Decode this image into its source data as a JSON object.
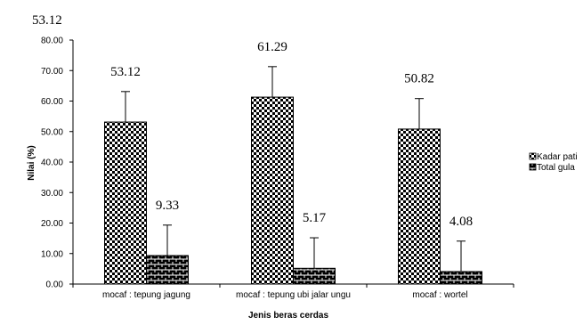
{
  "chart_data": {
    "type": "bar",
    "title": "53.12",
    "xlabel": "Jenis beras cerdas",
    "ylabel": "Nilai (%)",
    "ylim": [
      0,
      80
    ],
    "yticks": [
      "0.00",
      "10.00",
      "20.00",
      "30.00",
      "40.00",
      "50.00",
      "60.00",
      "70.00",
      "80.00"
    ],
    "categories": [
      "mocaf : tepung jagung",
      "mocaf : tepung ubi jalar ungu",
      "mocaf : wortel"
    ],
    "series": [
      {
        "name": "Kadar pati",
        "values": [
          53.12,
          61.29,
          50.82
        ],
        "labels": [
          "53.12",
          "61.29",
          "50.82"
        ],
        "error": [
          10,
          10,
          10
        ],
        "pattern": "checker"
      },
      {
        "name": "Total gula",
        "values": [
          9.33,
          5.17,
          4.08
        ],
        "labels": [
          "9.33",
          "5.17",
          "4.08"
        ],
        "error": [
          10,
          10,
          10
        ],
        "pattern": "brick"
      }
    ],
    "legend": "right",
    "grid": false
  }
}
